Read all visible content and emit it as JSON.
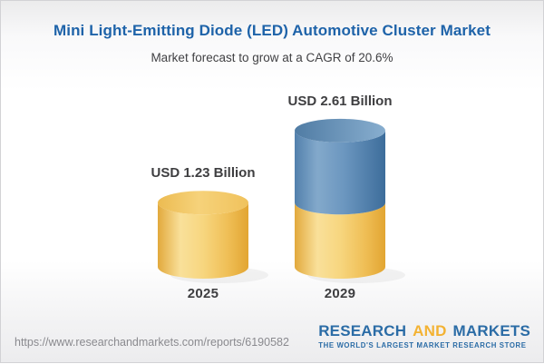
{
  "header": {
    "title": "Mini Light-Emitting Diode (LED) Automotive Cluster Market",
    "subtitle": "Market forecast to grow at a CAGR of 20.6%"
  },
  "chart_data": {
    "type": "bar",
    "subtype": "3d-cylinder-stacked",
    "title": "Mini Light-Emitting Diode (LED) Automotive Cluster Market",
    "subtitle": "Market forecast to grow at a CAGR of 20.6%",
    "categories": [
      "2025",
      "2029"
    ],
    "values": [
      1.23,
      2.61
    ],
    "value_labels": [
      "USD 1.23 Billion",
      "USD 2.61 Billion"
    ],
    "unit": "USD Billion",
    "cagr_pct": 20.6,
    "bars": [
      {
        "category": "2025",
        "value": 1.23,
        "label": "USD 1.23 Billion",
        "segments": [
          "gold"
        ]
      },
      {
        "category": "2029",
        "value": 2.61,
        "label": "USD 2.61 Billion",
        "segments": [
          "gold-base",
          "blue-growth"
        ]
      }
    ],
    "colors": {
      "gold": "#F3CD6F",
      "blue": "#6C99C2",
      "label_text": "#3E3E40"
    },
    "legend": "none",
    "grid": "off"
  },
  "footer": {
    "url": "https://www.researchandmarkets.com/reports/6190582",
    "logo": {
      "research": "RESEARCH",
      "and": "AND",
      "markets": "MARKETS",
      "tagline": "THE WORLD'S LARGEST MARKET RESEARCH STORE"
    }
  },
  "colors": {
    "title_blue": "#1E63A9",
    "logo_blue": "#2B6CA6",
    "logo_gold": "#F3B233",
    "url_gray": "#8A8A8F"
  }
}
